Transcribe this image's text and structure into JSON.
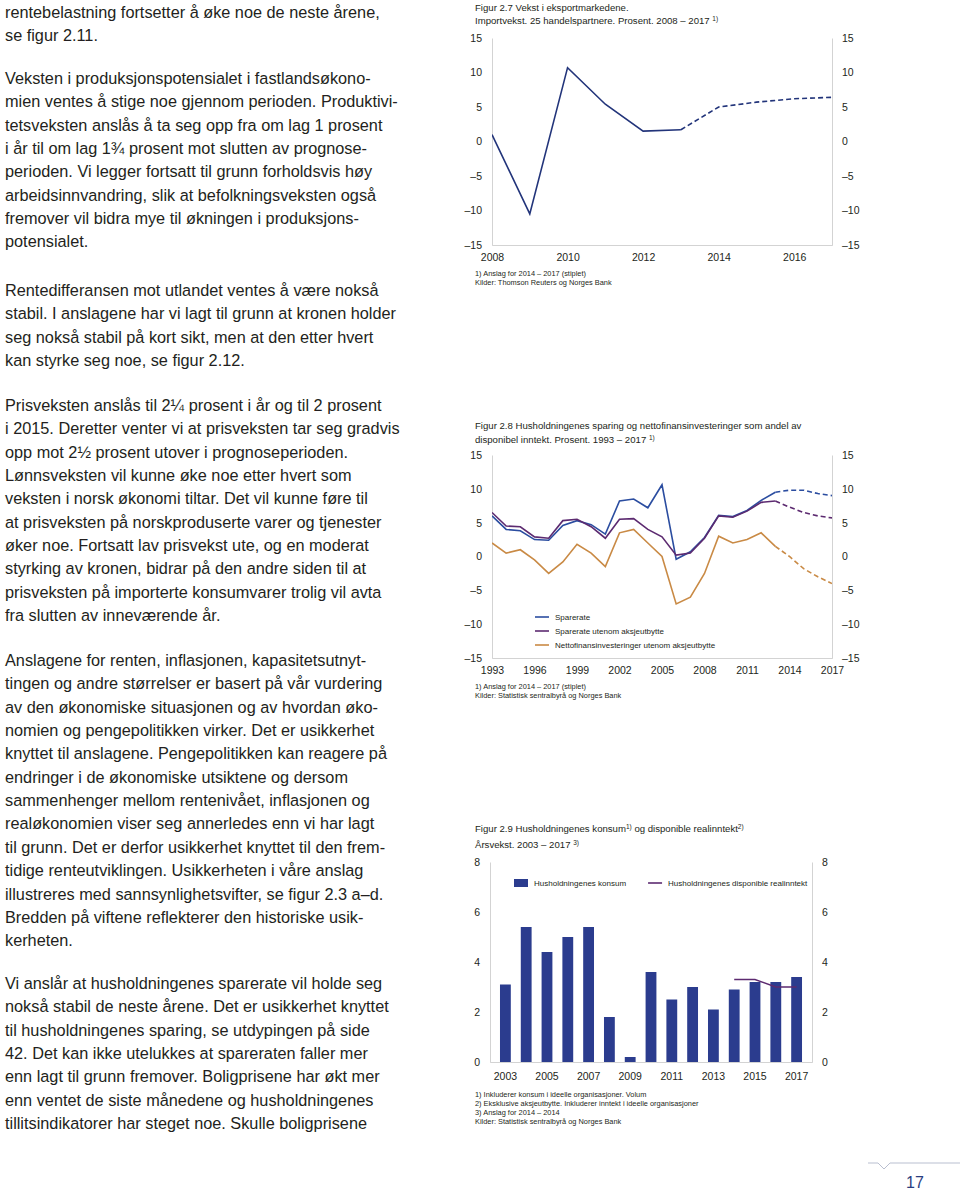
{
  "text": {
    "paragraphs": [
      [
        "rentebelastning fortsetter å øke noe de neste årene,",
        "se figur 2.11."
      ],
      [
        "Veksten i produksjonspotensialet i fastlandsøkono-",
        "mien ventes å stige noe gjennom perioden. Produktivi-",
        "tetsveksten anslås å ta seg opp fra om lag 1 prosent",
        "i år til om lag 1¾ prosent mot slutten av prognose-",
        "perioden. Vi legger fortsatt til grunn forholdsvis høy",
        "arbeidsinnvandring, slik at befolkningsveksten også",
        "fremover vil bidra mye til økningen i produksjons-",
        "potensialet."
      ],
      [
        "Rentedifferansen mot utlandet ventes å være nokså",
        "stabil. I anslagene har vi lagt til grunn at kronen holder",
        "seg nokså stabil på kort sikt, men at den etter hvert",
        "kan styrke seg noe, se figur 2.12."
      ],
      [
        "Prisveksten anslås til 2¼ prosent i år og til 2 prosent",
        "i 2015. Deretter venter vi at prisveksten tar seg gradvis",
        "opp mot 2½ prosent utover i prognoseperioden.",
        "Lønnsveksten vil kunne øke noe etter hvert som",
        "veksten i norsk økonomi tiltar. Det vil kunne føre til",
        "at prisveksten på norskproduserte varer og tjenester",
        "øker noe. Fortsatt lav prisvekst ute, og en moderat",
        "styrking av kronen, bidrar på den andre siden til at",
        "prisveksten på importerte konsumvarer trolig vil avta",
        "fra slutten av inneværende år."
      ],
      [
        "Anslagene for renten, inflasjonen, kapasitetsutnyt-",
        "tingen og andre størrelser er basert på vår vurdering",
        "av den økonomiske situasjonen og av hvordan øko-",
        "nomien og pengepolitikken virker. Det er usikkerhet",
        "knyttet til anslagene. Pengepolitikken kan reagere på",
        "endringer i de økonomiske utsiktene og dersom",
        "sammenhenger mellom rentenivået, inflasjonen og",
        "realøkonomien viser seg annerledes enn vi har lagt",
        "til grunn. Det er derfor usikkerhet knyttet til den frem-",
        "tidige renteutviklingen. Usikkerheten i våre anslag",
        "illustreres med sannsynlighetsvifter, se figur 2.3 a–d.",
        "Bredden på viftene reflekterer den historiske usik-",
        "kerheten."
      ],
      [
        "Vi anslår at husholdningenes sparerate vil holde seg",
        "nokså stabil de neste årene. Det er usikkerhet knyttet",
        "til husholdningenes sparing, se utdypingen på side",
        "42. Det kan ikke utelukkes at spareraten faller mer",
        "enn lagt til grunn fremover. Boligprisene har økt mer",
        "enn ventet de siste månedene og husholdningenes",
        "tillitsindikatorer har steget noe. Skulle boligprisene"
      ]
    ],
    "page_number": "17"
  },
  "chart_data": [
    {
      "type": "line",
      "title": [
        [
          "Figur 2.7 Vekst i eksportmarkedene."
        ],
        [
          "Importvekst. 25 handelspartnere. Prosent. 2008 – 2017 ",
          "1)"
        ]
      ],
      "x": [
        2008,
        2009,
        2010,
        2011,
        2012,
        2013,
        2014,
        2015,
        2016,
        2017
      ],
      "xlim": [
        2008,
        2017
      ],
      "xticks": [
        2008,
        2010,
        2012,
        2014,
        2016
      ],
      "ylim": [
        -15,
        15
      ],
      "yticks": [
        {
          "value": -15,
          "label": "–15"
        },
        {
          "value": -10,
          "label": "–10"
        },
        {
          "value": -5,
          "label": "–5"
        },
        0,
        5,
        10,
        15
      ],
      "grid": false,
      "series": [
        {
          "color": "#22347a",
          "line_style": "solid",
          "values": [
            1.0,
            -10.5,
            10.7,
            5.4,
            1.5,
            1.7,
            null,
            null,
            null,
            null
          ]
        },
        {
          "color": "#22347a",
          "line_style": "dashed",
          "values": [
            null,
            null,
            null,
            null,
            null,
            1.7,
            5.0,
            5.7,
            6.2,
            6.4
          ]
        }
      ],
      "footnotes": [
        "1) Anslag for 2014 – 2017 (stiplet)",
        "Kilder: Thomson Reuters og Norges Bank"
      ]
    },
    {
      "type": "line",
      "title": [
        [
          "Figur 2.8 Husholdningenes sparing og nettofinansinvesteringer som andel av"
        ],
        [
          "disponibel inntekt. Prosent. 1993 – 2017 ",
          "1)"
        ]
      ],
      "x": [
        1993,
        1994,
        1995,
        1996,
        1997,
        1998,
        1999,
        2000,
        2001,
        2002,
        2003,
        2004,
        2005,
        2006,
        2007,
        2008,
        2009,
        2010,
        2011,
        2012,
        2013,
        2014,
        2015,
        2016,
        2017
      ],
      "xlim": [
        1993,
        2017
      ],
      "xticks": [
        1993,
        1996,
        1999,
        2002,
        2005,
        2008,
        2011,
        2014,
        2017
      ],
      "ylim": [
        -15,
        15
      ],
      "yticks": [
        {
          "value": -15,
          "label": "–15"
        },
        {
          "value": -10,
          "label": "–10"
        },
        {
          "value": -5,
          "label": "–5"
        },
        0,
        5,
        10,
        15
      ],
      "grid": false,
      "legend": "lower left",
      "series": [
        {
          "name": "Sparerate",
          "color": "#2b4da0",
          "line_style": "solid",
          "values": [
            6.0,
            4.0,
            3.8,
            2.5,
            2.4,
            4.6,
            5.3,
            4.7,
            3.3,
            8.2,
            8.5,
            7.2,
            10.6,
            -0.4,
            0.7,
            2.8,
            6.1,
            5.9,
            6.8,
            8.3,
            9.5,
            null,
            null,
            null,
            null
          ]
        },
        {
          "name": "Sparerate utenom aksjeutbytte",
          "color": "#5c2a70",
          "line_style": "solid",
          "values": [
            6.5,
            4.5,
            4.4,
            2.9,
            2.7,
            5.3,
            5.5,
            4.4,
            2.7,
            5.5,
            5.6,
            4.0,
            2.9,
            0.2,
            0.5,
            2.7,
            6.0,
            5.8,
            6.7,
            8.0,
            8.2,
            null,
            null,
            null,
            null
          ]
        },
        {
          "name": "Nettofinansinvesteringer utenom aksjeutbytte",
          "color": "#c98a45",
          "line_style": "solid",
          "values": [
            2.0,
            0.5,
            1.0,
            -0.5,
            -2.5,
            -0.8,
            1.8,
            0.5,
            -1.5,
            3.5,
            4.0,
            2.0,
            0.0,
            -7.0,
            -6.0,
            -2.5,
            3.0,
            2.0,
            2.5,
            3.5,
            1.5,
            null,
            null,
            null,
            null
          ]
        },
        {
          "color": "#2b4da0",
          "line_style": "dashed",
          "values": [
            null,
            null,
            null,
            null,
            null,
            null,
            null,
            null,
            null,
            null,
            null,
            null,
            null,
            null,
            null,
            null,
            null,
            null,
            null,
            null,
            9.5,
            9.8,
            9.8,
            9.3,
            9.0
          ]
        },
        {
          "color": "#5c2a70",
          "line_style": "dashed",
          "values": [
            null,
            null,
            null,
            null,
            null,
            null,
            null,
            null,
            null,
            null,
            null,
            null,
            null,
            null,
            null,
            null,
            null,
            null,
            null,
            null,
            8.2,
            7.3,
            6.5,
            6.0,
            5.7
          ]
        },
        {
          "color": "#c98a45",
          "line_style": "dashed",
          "values": [
            null,
            null,
            null,
            null,
            null,
            null,
            null,
            null,
            null,
            null,
            null,
            null,
            null,
            null,
            null,
            null,
            null,
            null,
            null,
            null,
            1.5,
            0.0,
            -1.8,
            -3.0,
            -4.0
          ]
        }
      ],
      "footnotes": [
        "1) Anslag for 2014 – 2017 (stiplet)",
        "Kilder: Statistisk sentralbyrå og Norges Bank"
      ]
    },
    {
      "type": "bar",
      "title": [
        [
          "Figur 2.9 Husholdningenes konsum",
          "1)",
          " og disponible realinntekt",
          "2)"
        ],
        [
          "Årsvekst. 2003 – 2017 ",
          "3)"
        ]
      ],
      "categories": [
        "2003",
        null,
        "2005",
        null,
        "2007",
        null,
        "2009",
        null,
        "2011",
        null,
        "2013",
        null,
        "2015",
        null,
        "2017"
      ],
      "ylim": [
        0,
        8
      ],
      "yticks": [
        0,
        2,
        4,
        6,
        8
      ],
      "grid": false,
      "legend": "upper left",
      "series": [
        {
          "name": "Husholdningenes konsum",
          "type": "bar",
          "color": "#2b3c8e",
          "values": [
            3.1,
            5.4,
            4.4,
            5.0,
            5.4,
            1.8,
            0.2,
            3.6,
            2.5,
            3.0,
            2.1,
            2.9,
            3.2,
            3.2,
            3.4
          ]
        },
        {
          "name": "Husholdningenes disponible realinntekt",
          "type": "line",
          "color": "#5c2a70",
          "line_style": "solid",
          "values": [
            null,
            null,
            null,
            null,
            null,
            null,
            null,
            null,
            null,
            null,
            null,
            3.3,
            3.3,
            3.0,
            3.0
          ]
        }
      ],
      "footnotes": [
        "1) Inkluderer konsum i ideelle organisasjoner. Volum",
        "2) Eksklusive aksjeutbytte. Inkluderer inntekt i ideelle organisasjoner",
        "3) Anslag for 2014 – 2014",
        "Kilder: Statistisk sentralbyrå og Norges Bank"
      ]
    }
  ]
}
